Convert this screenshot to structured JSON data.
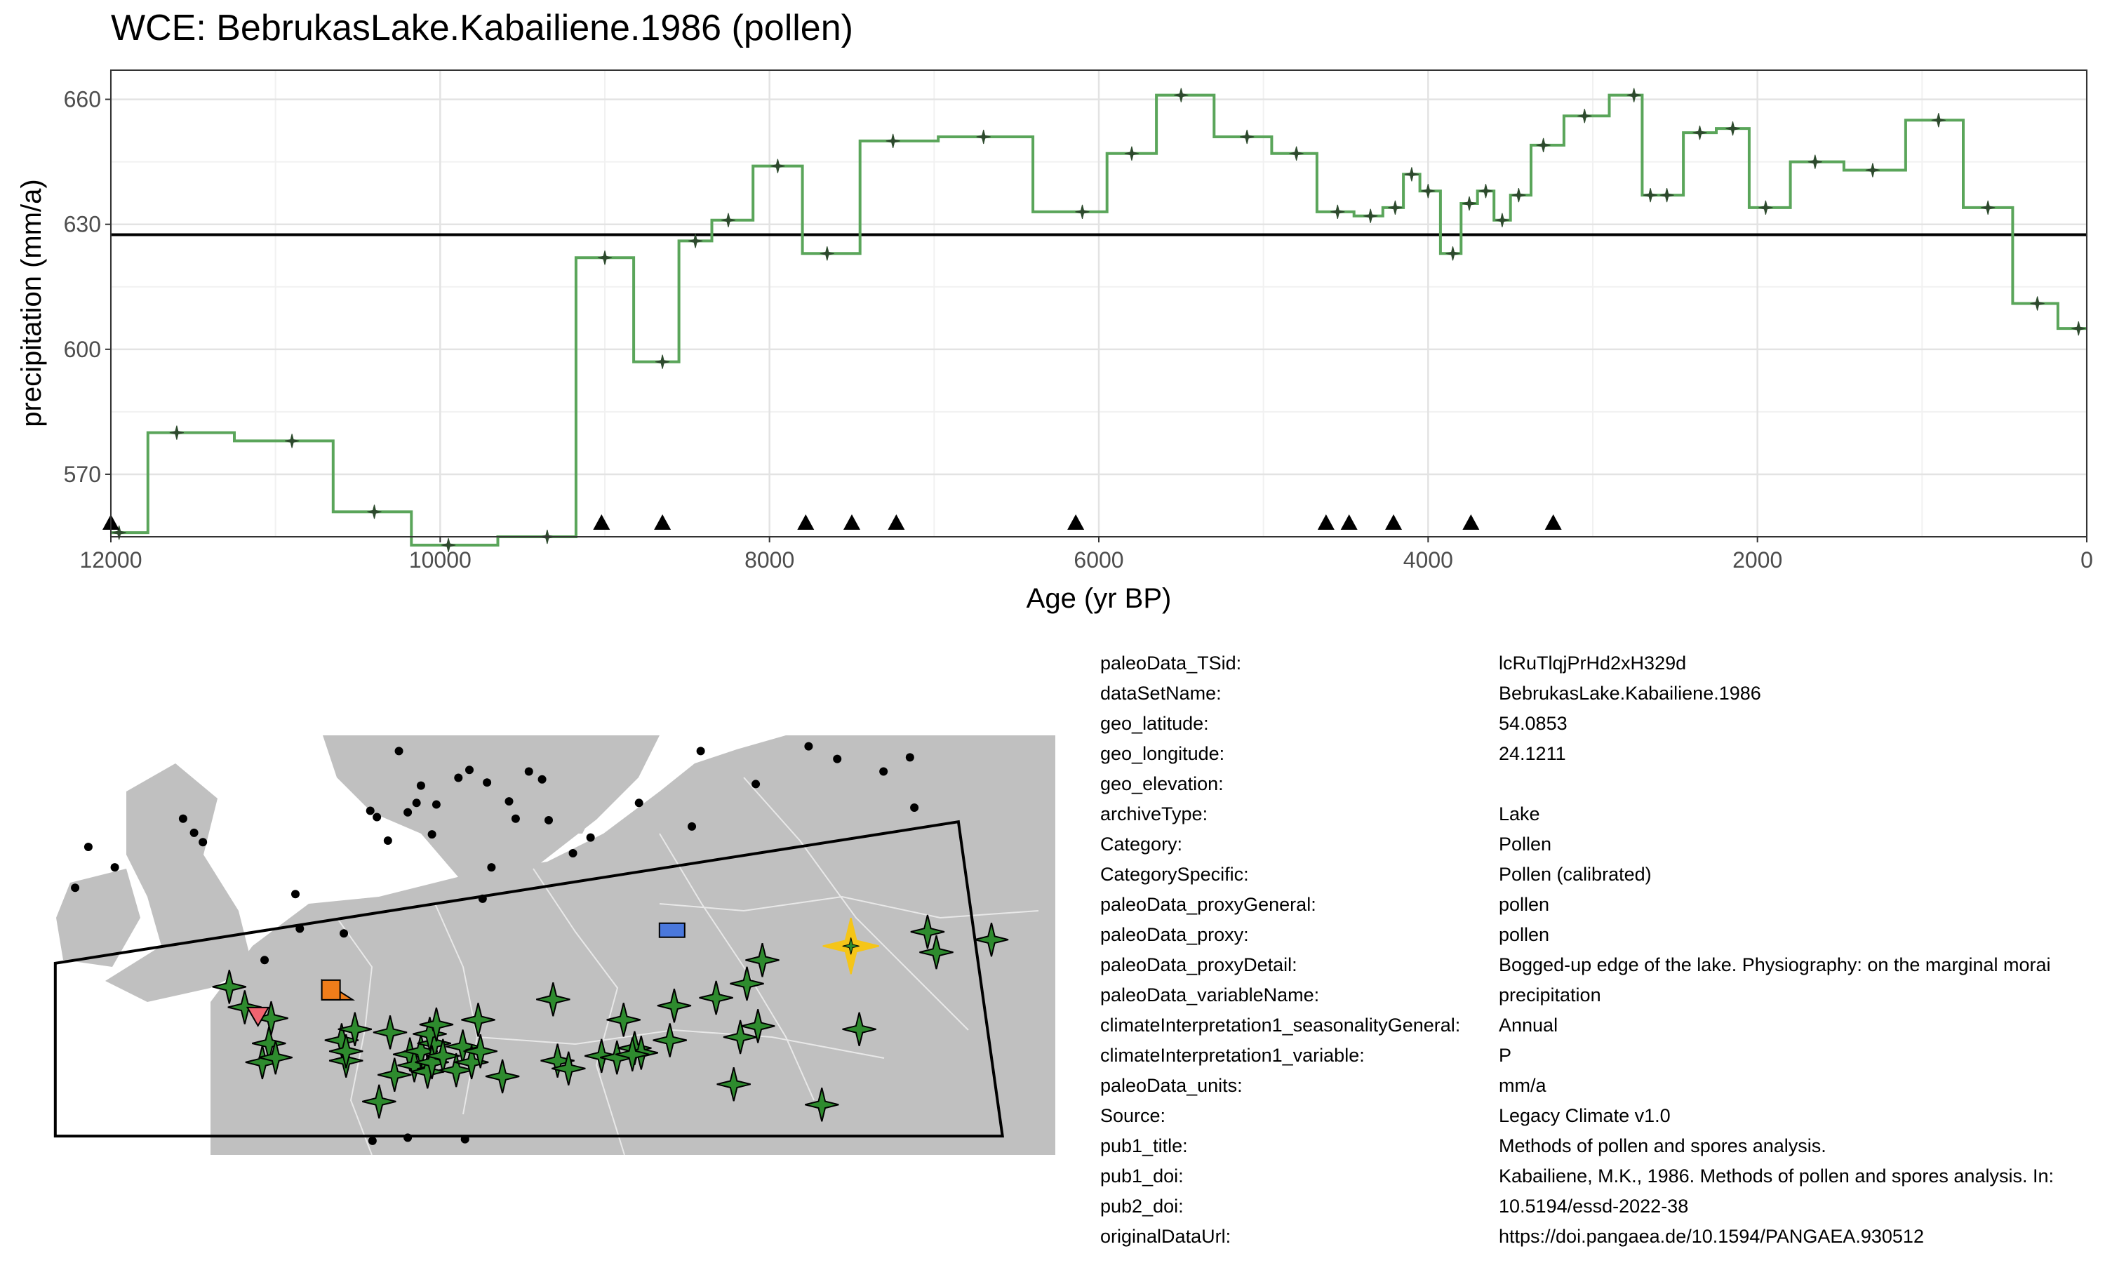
{
  "title": "WCE: BebrukasLake.Kabailiene.1986 (pollen)",
  "colors": {
    "line": "#5aa55a",
    "point": "#2d4a2d",
    "reference": "#000000",
    "grid_major": "#e3e3e3",
    "grid_minor": "#f1f1f1",
    "panel_border": "#333333",
    "land": "#c0c0c0",
    "borders": "#e8e8e8",
    "site_green": "#2e8b2e",
    "highlight_site": "#f5c518",
    "orange_site": "#f07d1a",
    "red_site": "#f06470",
    "blue_site": "#4a78dc"
  },
  "chart_data": {
    "type": "line",
    "step": true,
    "xlabel": "Age (yr BP)",
    "ylabel": "precipitation (mm/a)",
    "xlim": [
      12000,
      0
    ],
    "x_reversed": true,
    "ylim": [
      555,
      667
    ],
    "x_ticks": [
      12000,
      10000,
      8000,
      6000,
      4000,
      2000,
      0
    ],
    "y_ticks": [
      570,
      600,
      630,
      660
    ],
    "grid": true,
    "reference_line": 627.5,
    "series": [
      {
        "x": [
          11950,
          11600,
          10900,
          10400,
          9950,
          9350,
          9000,
          8650,
          8450,
          8250,
          7950,
          7650,
          7250,
          6700,
          6100,
          5800,
          5500,
          5100,
          4800,
          4550,
          4350,
          4200,
          4100,
          4000,
          3850,
          3750,
          3650,
          3550,
          3450,
          3300,
          3050,
          2750,
          2650,
          2550,
          2350,
          2150,
          1950,
          1650,
          1300,
          900,
          600,
          300,
          50
        ],
        "values": [
          556,
          580,
          578,
          561,
          553,
          555,
          622,
          597,
          626,
          631,
          644,
          623,
          650,
          651,
          633,
          647,
          661,
          651,
          647,
          633,
          632,
          634,
          642,
          638,
          623,
          635,
          638,
          631,
          637,
          649,
          656,
          661,
          637,
          637,
          652,
          653,
          634,
          645,
          643,
          655,
          634,
          611,
          605
        ]
      }
    ],
    "triangle_markers_x": [
      12000,
      9020,
      8650,
      7780,
      7500,
      7230,
      6140,
      4620,
      4480,
      4210,
      3740,
      3240
    ]
  },
  "map": {
    "polygon": [
      [
        -12,
        53
      ],
      [
        -12,
        42
      ],
      [
        31,
        42
      ],
      [
        29,
        62
      ]
    ],
    "highlight_site": {
      "lon": 24.12,
      "lat": 54.09
    },
    "green_sites": [
      [
        -4.1,
        51.5
      ],
      [
        -3.4,
        50.2
      ],
      [
        -2.2,
        49.5
      ],
      [
        -2.6,
        46.7
      ],
      [
        -2.3,
        47.9
      ],
      [
        -2.0,
        47.0
      ],
      [
        1.0,
        48.1
      ],
      [
        1.2,
        46.8
      ],
      [
        1.6,
        48.8
      ],
      [
        1.2,
        47.4
      ],
      [
        2.7,
        44.2
      ],
      [
        3.4,
        45.9
      ],
      [
        3.2,
        48.6
      ],
      [
        4.1,
        47.2
      ],
      [
        4.3,
        46.5
      ],
      [
        4.6,
        47.4
      ],
      [
        4.9,
        46.1
      ],
      [
        5.2,
        47.9
      ],
      [
        5.0,
        48.5
      ],
      [
        5.1,
        46.7
      ],
      [
        5.3,
        49.1
      ],
      [
        5.6,
        47.1
      ],
      [
        6.2,
        46.2
      ],
      [
        6.5,
        47.7
      ],
      [
        6.9,
        46.7
      ],
      [
        7.2,
        49.4
      ],
      [
        7.3,
        47.4
      ],
      [
        8.3,
        45.8
      ],
      [
        10.6,
        50.7
      ],
      [
        10.8,
        46.8
      ],
      [
        11.3,
        46.3
      ],
      [
        12.8,
        47.1
      ],
      [
        13.5,
        47.0
      ],
      [
        13.8,
        49.4
      ],
      [
        14.3,
        47.6
      ],
      [
        14.6,
        47.3
      ],
      [
        14.2,
        47.2
      ],
      [
        15.9,
        48.1
      ],
      [
        16.1,
        50.3
      ],
      [
        18.0,
        50.8
      ],
      [
        19.1,
        48.3
      ],
      [
        18.8,
        45.3
      ],
      [
        19.4,
        51.7
      ],
      [
        19.9,
        49.0
      ],
      [
        20.1,
        53.2
      ],
      [
        22.8,
        44.0
      ],
      [
        24.5,
        48.8
      ],
      [
        27.6,
        55.0
      ],
      [
        28.0,
        53.7
      ],
      [
        30.5,
        54.5
      ]
    ],
    "black_sites": [
      [
        -11.1,
        57.8
      ],
      [
        -10.5,
        60.4
      ],
      [
        -9.3,
        59.1
      ],
      [
        -6.2,
        62.2
      ],
      [
        -5.7,
        61.3
      ],
      [
        -5.3,
        60.7
      ],
      [
        -2.5,
        53.2
      ],
      [
        -1.1,
        57.4
      ],
      [
        -0.9,
        55.2
      ],
      [
        1.1,
        54.9
      ],
      [
        2.3,
        62.7
      ],
      [
        2.6,
        62.3
      ],
      [
        3.1,
        60.8
      ],
      [
        4.0,
        62.6
      ],
      [
        3.6,
        66.5
      ],
      [
        4.4,
        63.2
      ],
      [
        4.6,
        64.3
      ],
      [
        5.3,
        63.1
      ],
      [
        5.1,
        61.2
      ],
      [
        6.3,
        64.8
      ],
      [
        6.0,
        67.4
      ],
      [
        6.8,
        65.3
      ],
      [
        7.6,
        64.5
      ],
      [
        7.8,
        59.1
      ],
      [
        7.4,
        57.1
      ],
      [
        8.6,
        63.3
      ],
      [
        8.9,
        62.2
      ],
      [
        9.5,
        65.2
      ],
      [
        10.1,
        64.7
      ],
      [
        10.4,
        62.1
      ],
      [
        11.5,
        60.0
      ],
      [
        12.3,
        61.0
      ],
      [
        14.5,
        63.2
      ],
      [
        16.9,
        61.7
      ],
      [
        17.3,
        66.5
      ],
      [
        19.8,
        64.4
      ],
      [
        22.2,
        66.8
      ],
      [
        23.5,
        66.0
      ],
      [
        25.6,
        65.2
      ],
      [
        26.8,
        66.1
      ],
      [
        27.0,
        62.9
      ],
      [
        33.5,
        57.0
      ],
      [
        2.4,
        41.7
      ],
      [
        4.0,
        41.9
      ],
      [
        6.6,
        41.8
      ]
    ],
    "orange_site": {
      "lon": 0.8,
      "lat": 51.3
    },
    "red_site": {
      "lon": -2.8,
      "lat": 49.6
    },
    "blue_site": {
      "lon": 16.0,
      "lat": 55.1
    }
  },
  "metadata": [
    {
      "key": "paleoData_TSid:",
      "value": "lcRuTlqjPrHd2xH329d"
    },
    {
      "key": "dataSetName:",
      "value": "BebrukasLake.Kabailiene.1986"
    },
    {
      "key": "geo_latitude:",
      "value": "54.0853"
    },
    {
      "key": "geo_longitude:",
      "value": "24.1211"
    },
    {
      "key": "geo_elevation:",
      "value": ""
    },
    {
      "key": "archiveType:",
      "value": "Lake"
    },
    {
      "key": "Category:",
      "value": "Pollen"
    },
    {
      "key": "CategorySpecific:",
      "value": "Pollen (calibrated)"
    },
    {
      "key": "paleoData_proxyGeneral:",
      "value": "pollen"
    },
    {
      "key": "paleoData_proxy:",
      "value": "pollen"
    },
    {
      "key": "paleoData_proxyDetail:",
      "value": "Bogged-up edge of the lake. Physiography: on the marginal morai"
    },
    {
      "key": "paleoData_variableName:",
      "value": "precipitation"
    },
    {
      "key": "climateInterpretation1_seasonalityGeneral:",
      "value": "Annual"
    },
    {
      "key": "climateInterpretation1_variable:",
      "value": "P"
    },
    {
      "key": "paleoData_units:",
      "value": "mm/a"
    },
    {
      "key": "Source:",
      "value": "Legacy Climate v1.0"
    },
    {
      "key": "pub1_title:",
      "value": "Methods of pollen and spores analysis."
    },
    {
      "key": "pub1_doi:",
      "value": "Kabailiene, M.K., 1986. Methods of pollen and spores analysis. In:"
    },
    {
      "key": "pub2_doi:",
      "value": "10.5194/essd-2022-38"
    },
    {
      "key": "originalDataUrl:",
      "value": "https://doi.pangaea.de/10.1594/PANGAEA.930512"
    }
  ]
}
